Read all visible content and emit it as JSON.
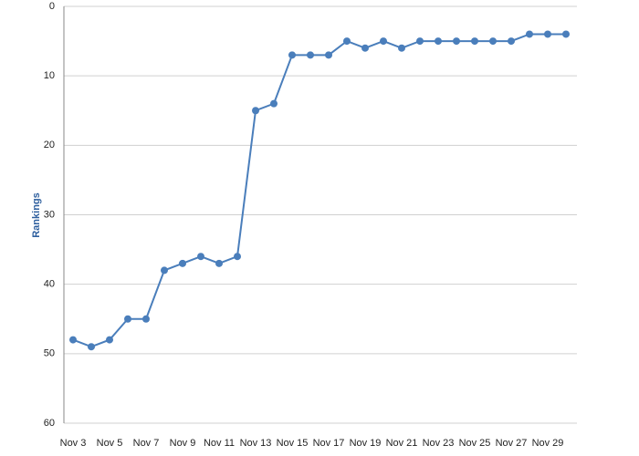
{
  "chart_data": {
    "type": "line",
    "y_label": "Rankings",
    "categories": [
      "Nov 3",
      null,
      "Nov 5",
      null,
      "Nov 7",
      null,
      "Nov 9",
      null,
      "Nov 11",
      null,
      "Nov 13",
      null,
      "Nov 15",
      null,
      "Nov 17",
      null,
      "Nov 19",
      null,
      "Nov 21",
      null,
      "Nov 23",
      null,
      "Nov 25",
      null,
      "Nov 27",
      null,
      "Nov 29",
      null
    ],
    "values": [
      48,
      49,
      48,
      45,
      45,
      38,
      37,
      36,
      37,
      36,
      15,
      14,
      7,
      7,
      7,
      5,
      6,
      5,
      6,
      5,
      5,
      5,
      5,
      5,
      5,
      4,
      4,
      4
    ],
    "color": "#4a7ebb",
    "label_color": "#2e5f9e",
    "ylim": [
      0,
      60
    ],
    "yticks": [
      0,
      10,
      20,
      30,
      40,
      50,
      60
    ],
    "y_inverted": true,
    "grid": true
  }
}
